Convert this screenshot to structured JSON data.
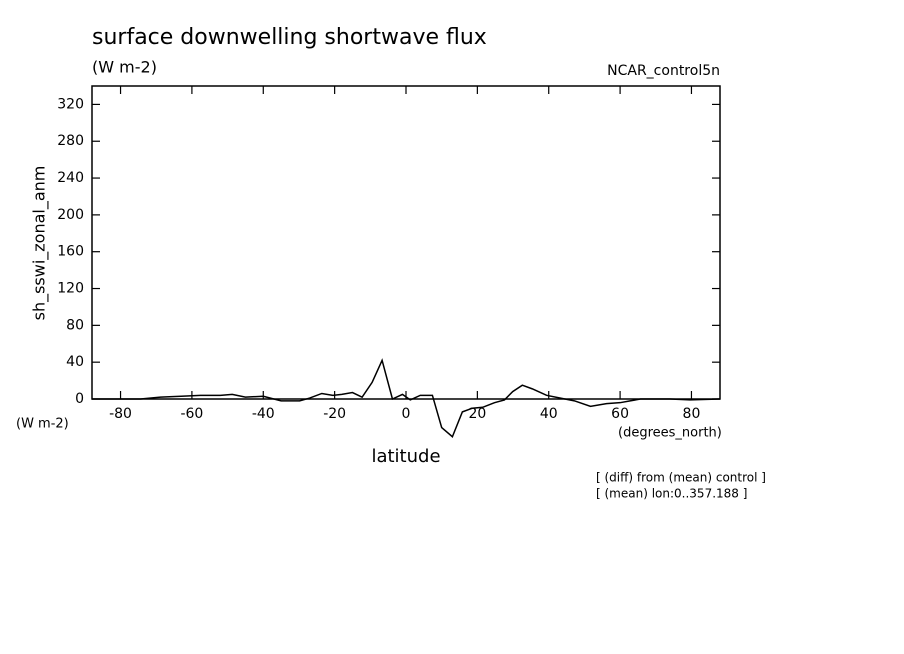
{
  "chart_data": {
    "type": "line",
    "title": "surface downwelling shortwave flux",
    "subtitle": "(W m-2)",
    "experiment": "NCAR_control5n",
    "y_label": "sh_sswi_zonal_anm",
    "y_unit": "(W m-2)",
    "x_label": "latitude",
    "x_unit": "(degrees_north)",
    "notes": [
      "[ (diff) from (mean) control ]",
      "[ (mean) lon:0..357.188 ]"
    ],
    "color": "#000000",
    "xlim": [
      -88,
      88
    ],
    "ylim": [
      0,
      340
    ],
    "xticks": [
      -80,
      -60,
      -40,
      -20,
      0,
      20,
      40,
      60,
      80
    ],
    "yticks": [
      0,
      40,
      80,
      120,
      160,
      200,
      240,
      280,
      320
    ],
    "x": [
      -88,
      -74.4,
      -68.8,
      -63,
      -57.6,
      -52,
      -48.7,
      -45,
      -40,
      -35,
      -29.8,
      -27,
      -23.6,
      -20.5,
      -18,
      -15,
      -12.3,
      -9.5,
      -6.7,
      -3.8,
      -1,
      1.2,
      4,
      7.4,
      10,
      13,
      15.8,
      18.6,
      21.5,
      24.8,
      27.6,
      29.9,
      32.6,
      35.4,
      39.4,
      43.3,
      47.2,
      51.7,
      56.2,
      60,
      65.7,
      74,
      79.6,
      88
    ],
    "values": [
      0,
      0,
      2,
      3,
      4,
      4,
      5,
      2,
      3,
      -2,
      -2,
      1,
      6,
      4,
      5,
      7,
      2,
      18,
      42,
      0,
      5,
      -1,
      4,
      4,
      -31,
      -41,
      -14,
      -10,
      -9,
      -4,
      -1,
      8,
      15,
      11,
      4,
      1,
      -2,
      -8,
      -5,
      -4,
      0,
      0,
      -1,
      0
    ]
  }
}
